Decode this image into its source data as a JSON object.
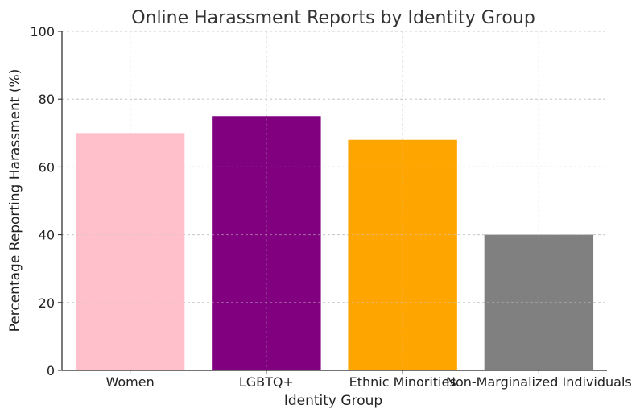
{
  "chart_data": {
    "type": "bar",
    "title": "Online Harassment Reports by Identity Group",
    "xlabel": "Identity Group",
    "ylabel": "Percentage Reporting Harassment (%)",
    "categories": [
      "Women",
      "LGBTQ+",
      "Ethnic Minorities",
      "Non-Marginalized Individuals"
    ],
    "values": [
      70,
      75,
      68,
      40
    ],
    "colors": [
      "#ffc0cb",
      "#800080",
      "#ffa500",
      "#808080"
    ],
    "ylim": [
      0,
      100
    ],
    "yticks": [
      0,
      20,
      40,
      60,
      80,
      100
    ],
    "grid": true,
    "grid_style": "dashed"
  }
}
